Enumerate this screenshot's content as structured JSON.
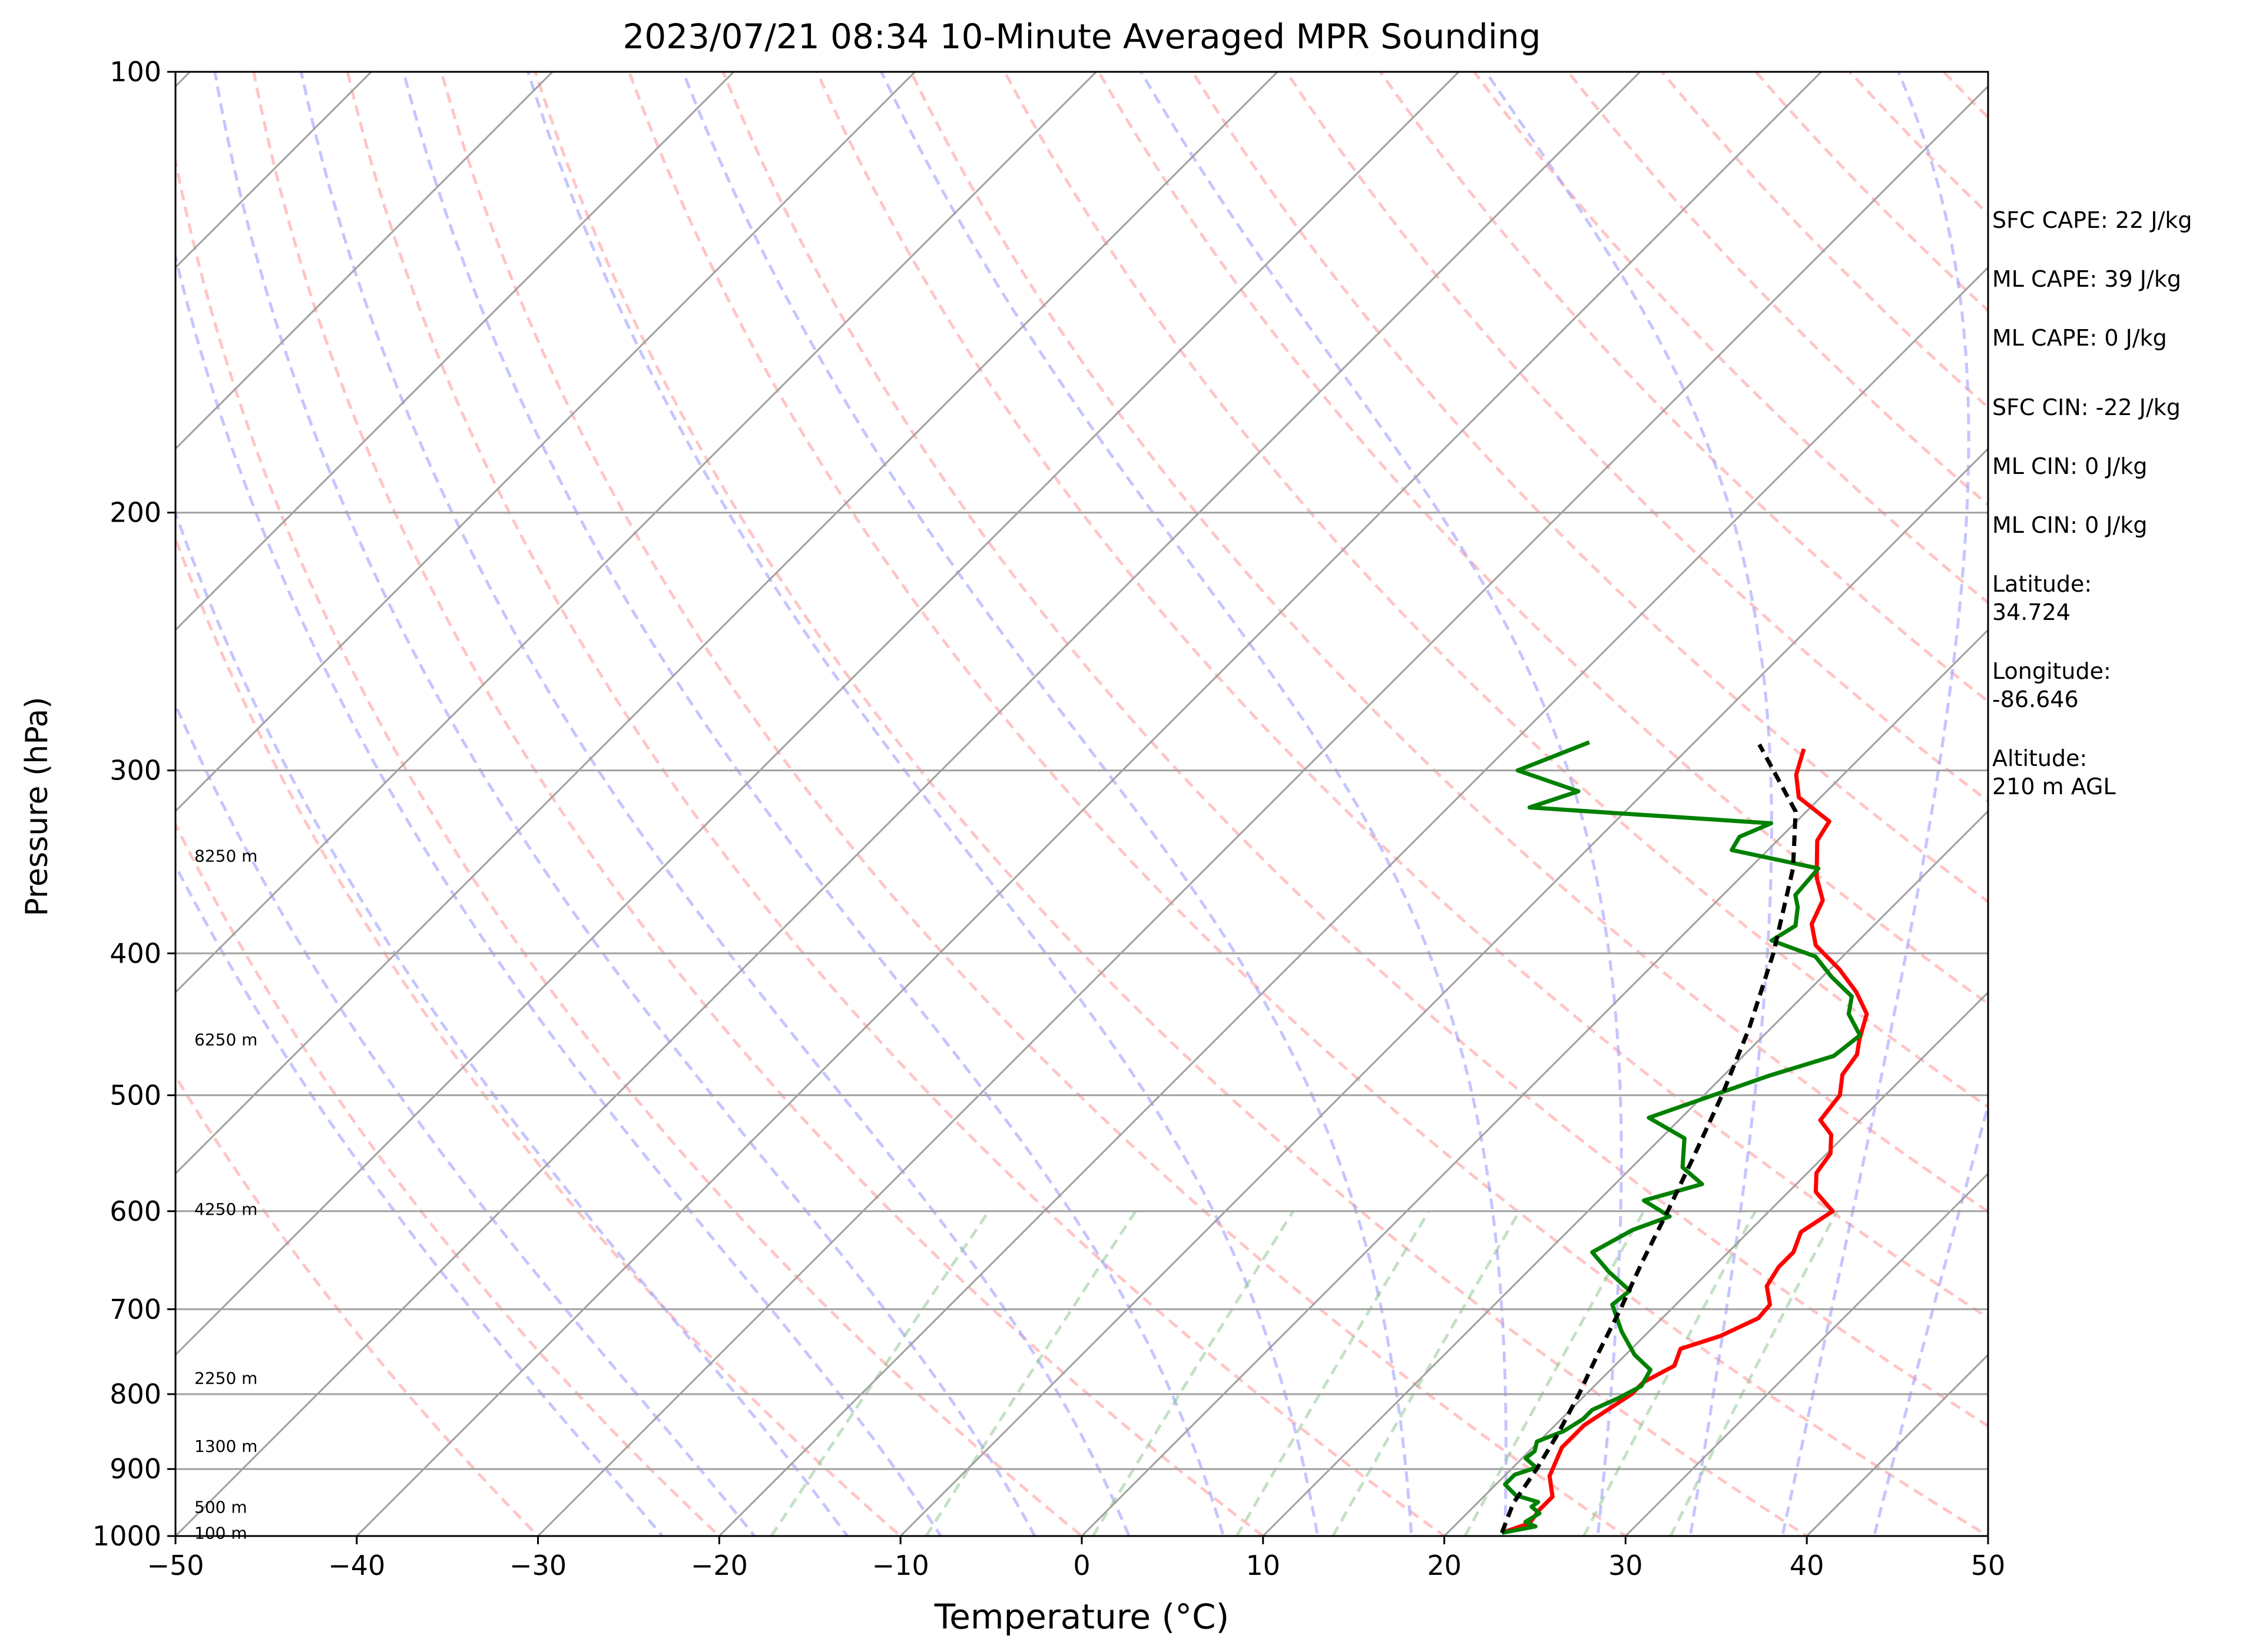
{
  "chart_data": {
    "type": "line",
    "title": "2023/07/21 08:34 10-Minute Averaged MPR Sounding",
    "xlabel": "Temperature (°C)",
    "ylabel": "Pressure (hPa)",
    "xlim": [
      -50,
      50
    ],
    "ylim": [
      1000,
      100
    ],
    "y_scale": "log",
    "grid": true,
    "x_ticks": [
      -50,
      -40,
      -30,
      -20,
      -10,
      0,
      10,
      20,
      30,
      40,
      50
    ],
    "x_tick_labels": [
      "−50",
      "−40",
      "−30",
      "−20",
      "−10",
      "0",
      "10",
      "20",
      "30",
      "40",
      "50"
    ],
    "y_ticks": [
      1000,
      900,
      800,
      700,
      600,
      500,
      400,
      300,
      200,
      100
    ],
    "y_tick_labels": [
      "1000",
      "900",
      "800",
      "700",
      "600",
      "500",
      "400",
      "300",
      "200",
      "100"
    ],
    "height_labels": [
      {
        "p": 995,
        "label": "100 m"
      },
      {
        "p": 955,
        "label": "500 m"
      },
      {
        "p": 868,
        "label": "1300 m"
      },
      {
        "p": 780,
        "label": "2250 m"
      },
      {
        "p": 598,
        "label": "4250 m"
      },
      {
        "p": 458,
        "label": "6250 m"
      },
      {
        "p": 343,
        "label": "8250 m"
      }
    ],
    "colors": {
      "temperature": "#ff0000",
      "dewpoint": "#008000",
      "parcel": "#000000",
      "dry_adiabat": "#ff9f9f",
      "moist_adiabat": "#9f9fff",
      "mixing_ratio": "#88c488",
      "isotherm": "#a0a0a0",
      "isobar": "#a0a0a0"
    },
    "series": [
      {
        "name": "",
        "role": "temperature",
        "points": [
          {
            "p": 995,
            "t": 23.0
          },
          {
            "p": 980,
            "t": 24.0
          },
          {
            "p": 960,
            "t": 23.8
          },
          {
            "p": 940,
            "t": 23.8
          },
          {
            "p": 910,
            "t": 22.5
          },
          {
            "p": 870,
            "t": 21.6
          },
          {
            "p": 840,
            "t": 21.6
          },
          {
            "p": 800,
            "t": 22.5
          },
          {
            "p": 785,
            "t": 22.5
          },
          {
            "p": 765,
            "t": 23.3
          },
          {
            "p": 745,
            "t": 22.7
          },
          {
            "p": 730,
            "t": 24.2
          },
          {
            "p": 710,
            "t": 25.3
          },
          {
            "p": 695,
            "t": 25.2
          },
          {
            "p": 675,
            "t": 24.0
          },
          {
            "p": 655,
            "t": 23.6
          },
          {
            "p": 640,
            "t": 23.6
          },
          {
            "p": 620,
            "t": 22.9
          },
          {
            "p": 600,
            "t": 23.5
          },
          {
            "p": 582,
            "t": 21.5
          },
          {
            "p": 565,
            "t": 20.5
          },
          {
            "p": 548,
            "t": 20.2
          },
          {
            "p": 532,
            "t": 19.2
          },
          {
            "p": 520,
            "t": 17.8
          },
          {
            "p": 500,
            "t": 17.5
          },
          {
            "p": 484,
            "t": 16.5
          },
          {
            "p": 469,
            "t": 16.2
          },
          {
            "p": 458,
            "t": 15.5
          },
          {
            "p": 440,
            "t": 14.5
          },
          {
            "p": 425,
            "t": 12.7
          },
          {
            "p": 410,
            "t": 10.5
          },
          {
            "p": 395,
            "t": 7.9
          },
          {
            "p": 382,
            "t": 6.5
          },
          {
            "p": 368,
            "t": 5.8
          },
          {
            "p": 355,
            "t": 4.2
          },
          {
            "p": 335,
            "t": 2.2
          },
          {
            "p": 325,
            "t": 1.8
          },
          {
            "p": 313,
            "t": -1.2
          },
          {
            "p": 302,
            "t": -2.6
          },
          {
            "p": 290,
            "t": -3.6
          }
        ]
      },
      {
        "name": "",
        "role": "dewpoint",
        "points": [
          {
            "p": 995,
            "t": 23.0
          },
          {
            "p": 985,
            "t": 24.5
          },
          {
            "p": 978,
            "t": 23.7
          },
          {
            "p": 965,
            "t": 24.0
          },
          {
            "p": 955,
            "t": 23.2
          },
          {
            "p": 948,
            "t": 23.3
          },
          {
            "p": 938,
            "t": 21.7
          },
          {
            "p": 922,
            "t": 20.5
          },
          {
            "p": 908,
            "t": 20.5
          },
          {
            "p": 898,
            "t": 21.3
          },
          {
            "p": 885,
            "t": 20.2
          },
          {
            "p": 875,
            "t": 20.3
          },
          {
            "p": 862,
            "t": 19.9
          },
          {
            "p": 848,
            "t": 20.8
          },
          {
            "p": 832,
            "t": 21.2
          },
          {
            "p": 820,
            "t": 21.2
          },
          {
            "p": 805,
            "t": 22.0
          },
          {
            "p": 790,
            "t": 22.6
          },
          {
            "p": 770,
            "t": 22.2
          },
          {
            "p": 752,
            "t": 20.5
          },
          {
            "p": 725,
            "t": 18.5
          },
          {
            "p": 695,
            "t": 16.5
          },
          {
            "p": 680,
            "t": 16.7
          },
          {
            "p": 660,
            "t": 14.5
          },
          {
            "p": 640,
            "t": 12.5
          },
          {
            "p": 618,
            "t": 13.5
          },
          {
            "p": 605,
            "t": 14.8
          },
          {
            "p": 590,
            "t": 12.5
          },
          {
            "p": 575,
            "t": 14.8
          },
          {
            "p": 560,
            "t": 12.8
          },
          {
            "p": 535,
            "t": 11.3
          },
          {
            "p": 518,
            "t": 8.2
          },
          {
            "p": 485,
            "t": 12.5
          },
          {
            "p": 470,
            "t": 15.0
          },
          {
            "p": 455,
            "t": 15.3
          },
          {
            "p": 440,
            "t": 13.5
          },
          {
            "p": 428,
            "t": 12.7
          },
          {
            "p": 415,
            "t": 10.5
          },
          {
            "p": 402,
            "t": 8.5
          },
          {
            "p": 392,
            "t": 5.2
          },
          {
            "p": 383,
            "t": 5.7
          },
          {
            "p": 372,
            "t": 4.8
          },
          {
            "p": 365,
            "t": 4.0
          },
          {
            "p": 350,
            "t": 3.8
          },
          {
            "p": 340,
            "t": -2.0
          },
          {
            "p": 333,
            "t": -2.3
          },
          {
            "p": 326,
            "t": -1.3
          },
          {
            "p": 318,
            "t": -15.5
          },
          {
            "p": 310,
            "t": -13.7
          },
          {
            "p": 300,
            "t": -18.2
          },
          {
            "p": 287,
            "t": -15.8
          }
        ]
      },
      {
        "name": "",
        "role": "parcel",
        "points": [
          {
            "p": 995,
            "t": 23.0
          },
          {
            "p": 950,
            "t": 22.0
          },
          {
            "p": 900,
            "t": 21.4
          },
          {
            "p": 850,
            "t": 20.6
          },
          {
            "p": 800,
            "t": 19.6
          },
          {
            "p": 750,
            "t": 18.4
          },
          {
            "p": 700,
            "t": 17.2
          },
          {
            "p": 650,
            "t": 15.8
          },
          {
            "p": 600,
            "t": 14.4
          },
          {
            "p": 550,
            "t": 12.8
          },
          {
            "p": 500,
            "t": 11.0
          },
          {
            "p": 450,
            "t": 8.8
          },
          {
            "p": 400,
            "t": 6.0
          },
          {
            "p": 350,
            "t": 2.4
          },
          {
            "p": 320,
            "t": -0.6
          },
          {
            "p": 288,
            "t": -6.3
          }
        ]
      }
    ]
  },
  "info_panel": {
    "sfc_cape": "SFC CAPE: 22 J/kg",
    "ml_cape_1": "ML CAPE: 39 J/kg",
    "ml_cape_2": "ML CAPE: 0 J/kg",
    "sfc_cin": "SFC CIN: -22 J/kg",
    "ml_cin_1": "ML CIN: 0 J/kg",
    "ml_cin_2": "ML CIN: 0 J/kg",
    "latitude_label": "Latitude:",
    "latitude_value": "34.724",
    "longitude_label": "Longitude:",
    "longitude_value": "-86.646",
    "altitude_label": "Altitude:",
    "altitude_value": "210 m AGL"
  }
}
